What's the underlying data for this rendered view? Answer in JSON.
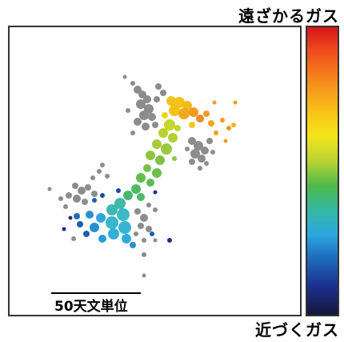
{
  "labels": {
    "top": "遠ざかるガス",
    "bottom": "近づくガス",
    "scale": "50天文単位"
  },
  "colors": {
    "gray": "#8c8c8c",
    "yellow": "#f4c21a",
    "orange": "#f29a20",
    "yellow_green": "#b8d32c",
    "green": "#6cc04a",
    "cyan": "#3cb9c6",
    "teal_blue": "#2a8fd2",
    "blue": "#1d5cb6",
    "dark_blue": "#1b2f8a"
  }
}
